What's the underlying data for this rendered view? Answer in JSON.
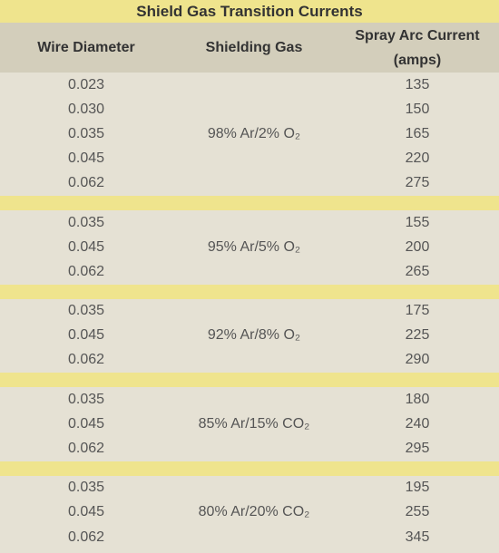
{
  "title": "Shield Gas Transition Currents",
  "headers": [
    "Wire Diameter",
    "Shielding Gas",
    "Spray Arc Current (amps)"
  ],
  "groups": [
    {
      "gas": "98% Ar/2% O₂",
      "rows": [
        [
          "0.023",
          135
        ],
        [
          "0.030",
          150
        ],
        [
          "0.035",
          165
        ],
        [
          "0.045",
          220
        ],
        [
          "0.062",
          275
        ]
      ]
    },
    {
      "gas": "95% Ar/5% O₂",
      "rows": [
        [
          "0.035",
          155
        ],
        [
          "0.045",
          200
        ],
        [
          "0.062",
          265
        ]
      ]
    },
    {
      "gas": "92% Ar/8% O₂",
      "rows": [
        [
          "0.035",
          175
        ],
        [
          "0.045",
          225
        ],
        [
          "0.062",
          290
        ]
      ]
    },
    {
      "gas": "85% Ar/15% CO₂",
      "rows": [
        [
          "0.035",
          180
        ],
        [
          "0.045",
          240
        ],
        [
          "0.062",
          295
        ]
      ]
    },
    {
      "gas": "80% Ar/20% CO₂",
      "rows": [
        [
          "0.035",
          195
        ],
        [
          "0.045",
          255
        ],
        [
          "0.062",
          345
        ]
      ]
    }
  ]
}
